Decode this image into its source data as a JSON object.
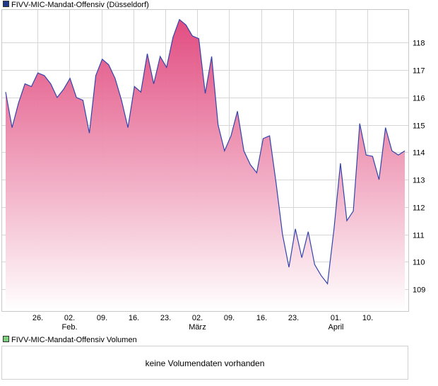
{
  "colors": {
    "line": "#3344aa",
    "fill_top": "#e0447a",
    "fill_bottom": "#ffffff",
    "grid": "#d6d6d6",
    "border": "#c8c8c8",
    "price_swatch": "#1f3a8a",
    "volume_swatch": "#7ccf7c"
  },
  "chart_data": {
    "type": "area",
    "title": "FIVV-MIC-Mandat-Offensiv (Düsseldorf)",
    "ylim": [
      108.2,
      119.2
    ],
    "yticks": [
      109,
      110,
      111,
      112,
      113,
      114,
      115,
      116,
      117,
      118
    ],
    "grid": true,
    "x_index_range": [
      0,
      75
    ],
    "xticks": [
      {
        "index": 6,
        "label": "26.",
        "sub": ""
      },
      {
        "index": 12,
        "label": "02.",
        "sub": "Feb."
      },
      {
        "index": 18,
        "label": "09.",
        "sub": ""
      },
      {
        "index": 24,
        "label": "16.",
        "sub": ""
      },
      {
        "index": 30,
        "label": "23.",
        "sub": ""
      },
      {
        "index": 36,
        "label": "02.",
        "sub": "März"
      },
      {
        "index": 42,
        "label": "09.",
        "sub": ""
      },
      {
        "index": 48,
        "label": "16.",
        "sub": ""
      },
      {
        "index": 54,
        "label": "23.",
        "sub": ""
      },
      {
        "index": 62,
        "label": "01.",
        "sub": "April"
      },
      {
        "index": 68,
        "label": "10.",
        "sub": ""
      }
    ],
    "series": [
      {
        "name": "FIVV-MIC-Mandat-Offensiv (Düsseldorf)",
        "values": [
          116.2,
          114.9,
          115.8,
          116.5,
          116.4,
          116.9,
          116.8,
          116.5,
          116.0,
          116.3,
          116.7,
          116.0,
          115.9,
          114.7,
          116.8,
          117.4,
          117.2,
          116.7,
          115.9,
          114.9,
          116.4,
          116.2,
          117.6,
          116.5,
          117.5,
          117.1,
          118.2,
          118.85,
          118.65,
          118.25,
          118.15,
          116.15,
          117.5,
          115.0,
          114.05,
          114.6,
          115.5,
          114.05,
          113.55,
          113.25,
          114.5,
          114.6,
          112.9,
          111.0,
          109.8,
          111.2,
          110.15,
          111.1,
          109.9,
          109.5,
          109.2,
          111.2,
          113.6,
          111.5,
          111.85,
          115.05,
          113.9,
          113.85,
          113.0,
          114.9,
          114.05,
          113.9,
          114.05
        ]
      }
    ]
  },
  "volume": {
    "title": "FIVV-MIC-Mandat-Offensiv Volumen",
    "message": "keine Volumendaten vorhanden"
  }
}
